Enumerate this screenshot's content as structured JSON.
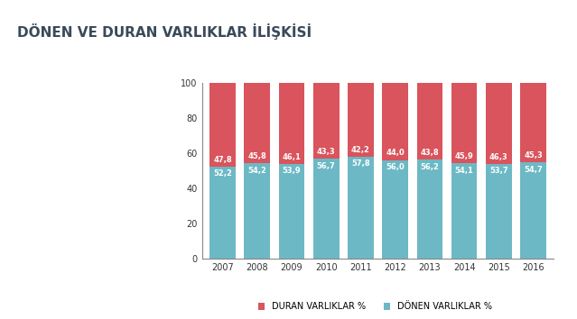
{
  "chart_data": {
    "type": "bar",
    "title": "DÖNEN VE DURAN VARLIKLAR İLİŞKİSİ",
    "categories": [
      "2007",
      "2008",
      "2009",
      "2010",
      "2011",
      "2012",
      "2013",
      "2014",
      "2015",
      "2016"
    ],
    "stacked": true,
    "data_labels": true,
    "legend": "lower center",
    "grid": false,
    "ylim": [
      0,
      100
    ],
    "yticks": [
      0,
      20,
      40,
      60,
      80,
      100
    ],
    "series": [
      {
        "name": "DÖNEN VARLIKLAR %",
        "color": "#6cb9c5",
        "values": [
          52.2,
          54.2,
          53.9,
          56.7,
          57.8,
          56.0,
          56.2,
          54.1,
          53.7,
          54.7
        ],
        "value_labels": [
          "52,2",
          "54,2",
          "53,9",
          "56,7",
          "57,8",
          "56,0",
          "56,2",
          "54,1",
          "53,7",
          "54,7"
        ]
      },
      {
        "name": "DURAN VARLIKLAR %",
        "color": "#d9545c",
        "values": [
          47.8,
          45.8,
          46.1,
          43.3,
          42.2,
          44.0,
          43.8,
          45.9,
          46.3,
          45.3
        ],
        "value_labels": [
          "47,8",
          "45,8",
          "46,1",
          "43,3",
          "42,2",
          "44,0",
          "43,8",
          "45,9",
          "46,3",
          "45,3"
        ]
      }
    ]
  }
}
